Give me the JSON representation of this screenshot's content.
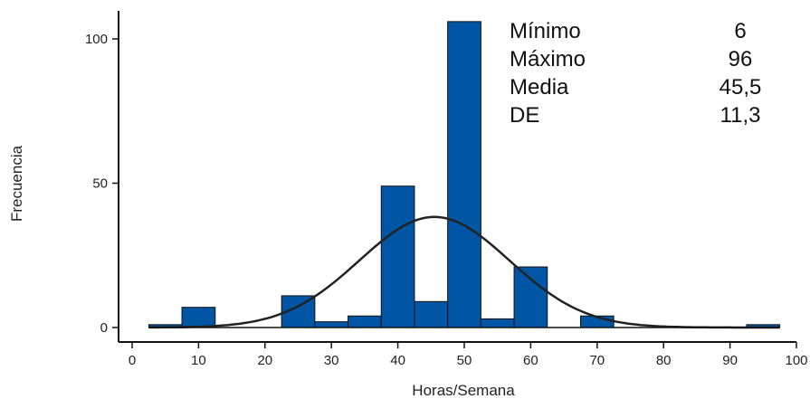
{
  "chart_data": {
    "type": "bar",
    "xlabel": "Horas/Semana",
    "ylabel": "Frecuencia",
    "xlim": [
      0,
      100
    ],
    "ylim": [
      0,
      100
    ],
    "x_ticks": [
      "0",
      "10",
      "20",
      "30",
      "40",
      "50",
      "60",
      "70",
      "80",
      "90",
      "100"
    ],
    "y_ticks": [
      "0",
      "50",
      "100"
    ],
    "bin_width": 5,
    "bins": [
      {
        "start": 2.5,
        "value": 1
      },
      {
        "start": 7.5,
        "value": 7
      },
      {
        "start": 12.5,
        "value": 0
      },
      {
        "start": 17.5,
        "value": 0
      },
      {
        "start": 22.5,
        "value": 11
      },
      {
        "start": 27.5,
        "value": 2
      },
      {
        "start": 32.5,
        "value": 4
      },
      {
        "start": 37.5,
        "value": 49
      },
      {
        "start": 42.5,
        "value": 9
      },
      {
        "start": 47.5,
        "value": 106
      },
      {
        "start": 52.5,
        "value": 3
      },
      {
        "start": 57.5,
        "value": 21
      },
      {
        "start": 62.5,
        "value": 0
      },
      {
        "start": 67.5,
        "value": 4
      },
      {
        "start": 72.5,
        "value": 0
      },
      {
        "start": 77.5,
        "value": 0
      },
      {
        "start": 82.5,
        "value": 0
      },
      {
        "start": 87.5,
        "value": 0
      },
      {
        "start": 92.5,
        "value": 1
      }
    ],
    "normal_curve": {
      "mean": 45.5,
      "sd": 11.3,
      "peak": 38.3
    },
    "stats": [
      {
        "label": "Mínimo",
        "value": "6"
      },
      {
        "label": "Máximo",
        "value": "96"
      },
      {
        "label": "Media",
        "value": "45,5"
      },
      {
        "label": "DE",
        "value": "11,3"
      }
    ],
    "colors": {
      "bar": "#0055a5",
      "curve": "#222222"
    }
  }
}
